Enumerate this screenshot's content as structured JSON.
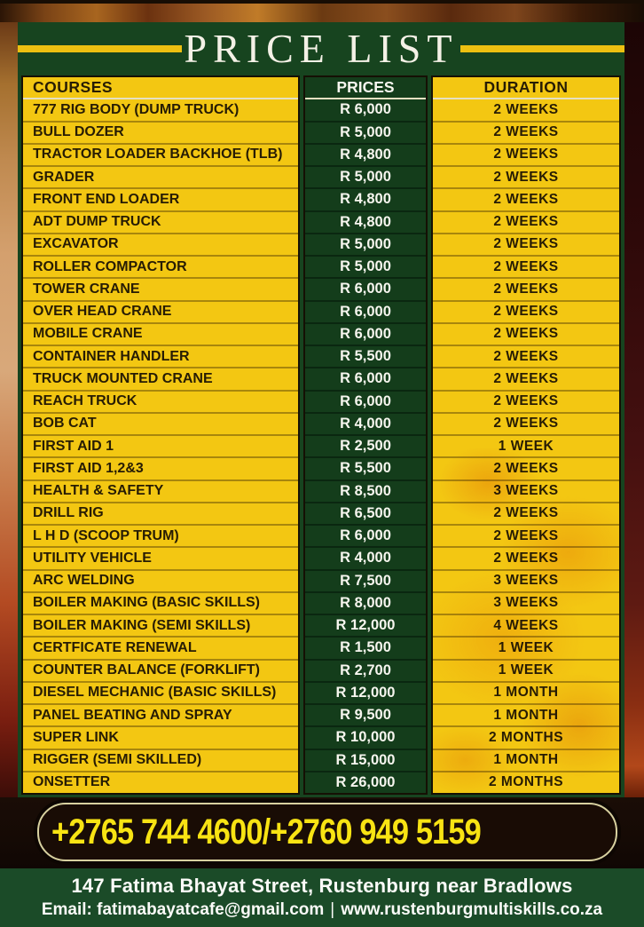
{
  "title": "PRICE LIST",
  "table": {
    "headers": {
      "courses": "COURSES",
      "prices": "PRICES",
      "duration": "DURATION"
    },
    "rows": [
      {
        "course": "777 RIG BODY (DUMP TRUCK)",
        "price": "R 6,000",
        "duration": "2 WEEKS"
      },
      {
        "course": "BULL DOZER",
        "price": "R 5,000",
        "duration": "2 WEEKS"
      },
      {
        "course": "TRACTOR LOADER BACKHOE (TLB)",
        "price": "R 4,800",
        "duration": "2 WEEKS"
      },
      {
        "course": "GRADER",
        "price": "R 5,000",
        "duration": "2 WEEKS"
      },
      {
        "course": "FRONT END LOADER",
        "price": "R 4,800",
        "duration": "2 WEEKS"
      },
      {
        "course": "ADT DUMP TRUCK",
        "price": "R 4,800",
        "duration": "2 WEEKS"
      },
      {
        "course": "EXCAVATOR",
        "price": "R 5,000",
        "duration": "2 WEEKS"
      },
      {
        "course": "ROLLER COMPACTOR",
        "price": "R 5,000",
        "duration": "2 WEEKS"
      },
      {
        "course": "TOWER CRANE",
        "price": "R 6,000",
        "duration": "2 WEEKS"
      },
      {
        "course": "OVER HEAD CRANE",
        "price": "R 6,000",
        "duration": "2 WEEKS"
      },
      {
        "course": "MOBILE CRANE",
        "price": "R 6,000",
        "duration": "2 WEEKS"
      },
      {
        "course": "CONTAINER HANDLER",
        "price": "R 5,500",
        "duration": "2 WEEKS"
      },
      {
        "course": "TRUCK MOUNTED CRANE",
        "price": "R 6,000",
        "duration": "2 WEEKS"
      },
      {
        "course": "REACH TRUCK",
        "price": "R 6,000",
        "duration": "2 WEEKS"
      },
      {
        "course": "BOB CAT",
        "price": "R 4,000",
        "duration": "2 WEEKS"
      },
      {
        "course": "FIRST AID 1",
        "price": "R 2,500",
        "duration": "1 WEEK"
      },
      {
        "course": "FIRST AID 1,2&3",
        "price": "R 5,500",
        "duration": "2 WEEKS"
      },
      {
        "course": "HEALTH & SAFETY",
        "price": "R 8,500",
        "duration": "3 WEEKS"
      },
      {
        "course": "DRILL RIG",
        "price": "R 6,500",
        "duration": "2 WEEKS"
      },
      {
        "course": "L H D (SCOOP TRUM)",
        "price": "R 6,000",
        "duration": "2 WEEKS"
      },
      {
        "course": "UTILITY VEHICLE",
        "price": "R 4,000",
        "duration": "2 WEEKS"
      },
      {
        "course": "ARC WELDING",
        "price": "R 7,500",
        "duration": "3 WEEKS"
      },
      {
        "course": "BOILER MAKING (BASIC SKILLS)",
        "price": "R 8,000",
        "duration": "3 WEEKS"
      },
      {
        "course": "BOILER MAKING (SEMI SKILLS)",
        "price": "R 12,000",
        "duration": "4 WEEKS"
      },
      {
        "course": "CERTFICATE RENEWAL",
        "price": "R 1,500",
        "duration": "1 WEEK"
      },
      {
        "course": "COUNTER BALANCE (FORKLIFT)",
        "price": "R 2,700",
        "duration": "1 WEEK"
      },
      {
        "course": "DIESEL MECHANIC (BASIC SKILLS)",
        "price": "R 12,000",
        "duration": "1 MONTH"
      },
      {
        "course": "PANEL BEATING AND SPRAY",
        "price": "R 9,500",
        "duration": "1 MONTH"
      },
      {
        "course": "SUPER LINK",
        "price": "R 10,000",
        "duration": "2 MONTHS"
      },
      {
        "course": "RIGGER (SEMI SKILLED)",
        "price": "R 15,000",
        "duration": "1 MONTH"
      },
      {
        "course": "ONSETTER",
        "price": "R 26,000",
        "duration": "2 MONTHS"
      }
    ]
  },
  "contact": {
    "phone": "+2765 744 4600/+2760 949 5159",
    "address": "147 Fatima Bhayat Street, Rustenburg near Bradlows",
    "email": "Email: fatimabayatcafe@gmail.com",
    "separator": "|",
    "website": "www.rustenburgmultiskills.co.za"
  },
  "colors": {
    "panel_green": "#17441f",
    "cell_yellow": "#f3c712",
    "price_cell_green": "#143d1b",
    "title_line_yellow": "#edc011",
    "phone_yellow": "#f8e313",
    "footer_green": "#1b4b28",
    "dark_text": "#271c04"
  }
}
